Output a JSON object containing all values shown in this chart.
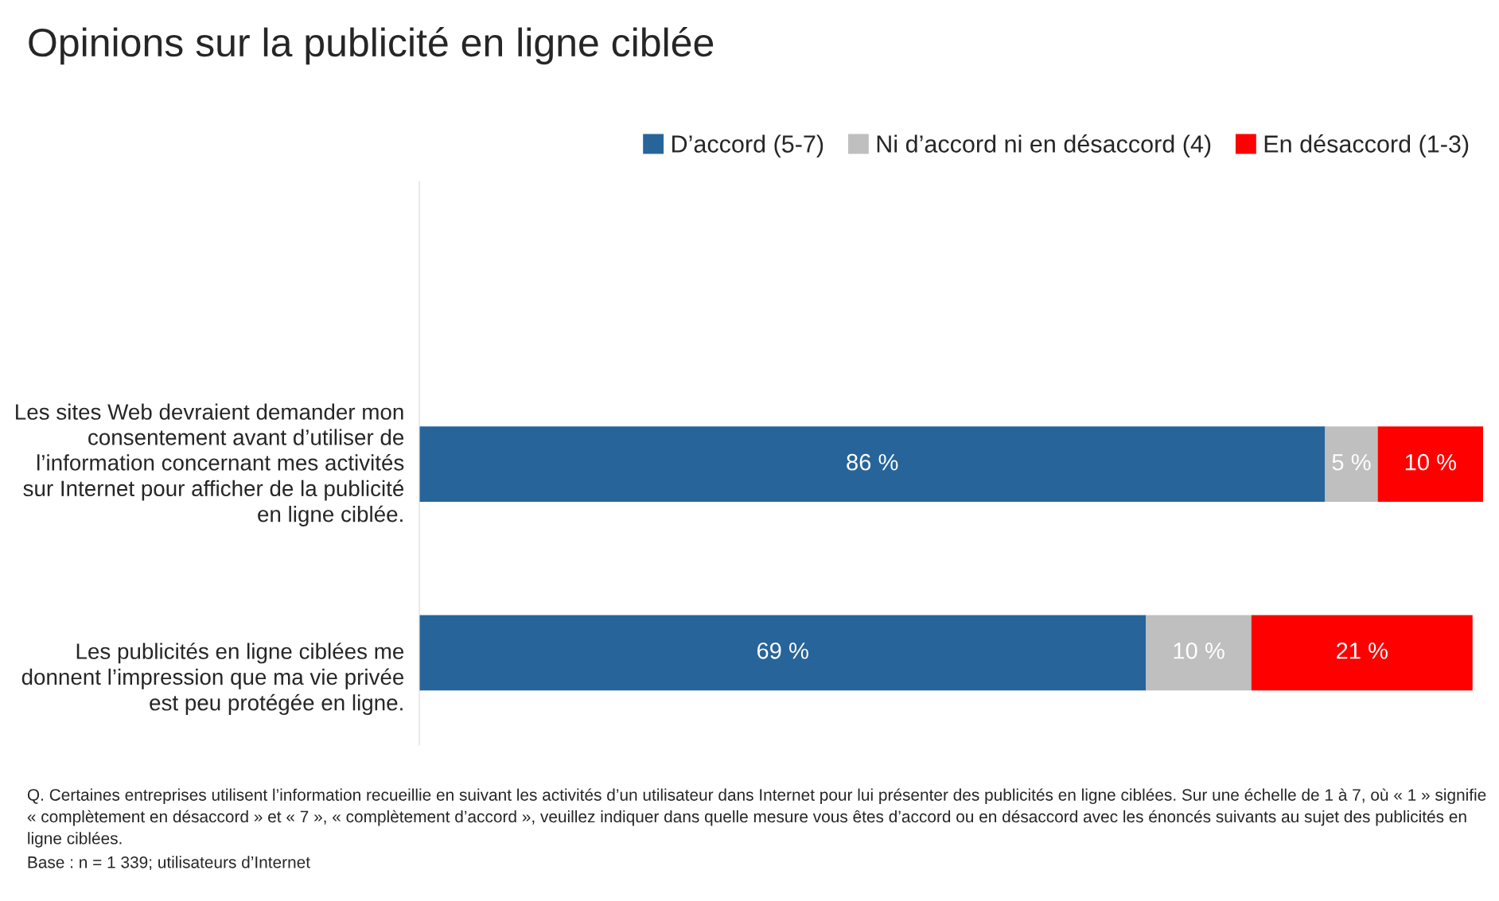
{
  "chart_data": {
    "type": "bar",
    "orientation": "horizontal",
    "stacked": true,
    "title": "Opinions sur la publicité en ligne ciblée",
    "categories": [
      "Les sites Web devraient demander mon consentement avant d’utiliser de l’information concernant mes activités sur Internet pour afficher de la publicité en ligne ciblée.",
      "Les publicités en ligne ciblées me donnent l’impression que ma vie privée est peu protégée en ligne."
    ],
    "series": [
      {
        "name": "D’accord (5-7)",
        "color": "#27649a",
        "values": [
          86,
          69
        ],
        "value_labels": [
          "86 %",
          "69 %"
        ]
      },
      {
        "name": "Ni d’accord ni en désaccord (4)",
        "color": "#bfbfbf",
        "values": [
          5,
          10
        ],
        "value_labels": [
          "5 %",
          "10 %"
        ]
      },
      {
        "name": "En désaccord (1-3)",
        "color": "#ff0000",
        "values": [
          10,
          21
        ],
        "value_labels": [
          "10 %",
          "21 %"
        ]
      }
    ],
    "legend": "top right",
    "annotations": [
      "Q. Certaines entreprises utilisent l’information recueillie en suivant les activités d’un utilisateur dans Internet pour lui présenter des publicités en ligne ciblées. Sur une échelle de 1 à 7, où « 1 » signifie « complètement en désaccord » et « 7 », « complètement d’accord », veuillez indiquer dans quelle mesure vous êtes d’accord ou en désaccord avec les énoncés suivants au sujet des publicités en ligne ciblées.",
      "Base : n = 1 339; utilisateurs d’Internet"
    ]
  }
}
